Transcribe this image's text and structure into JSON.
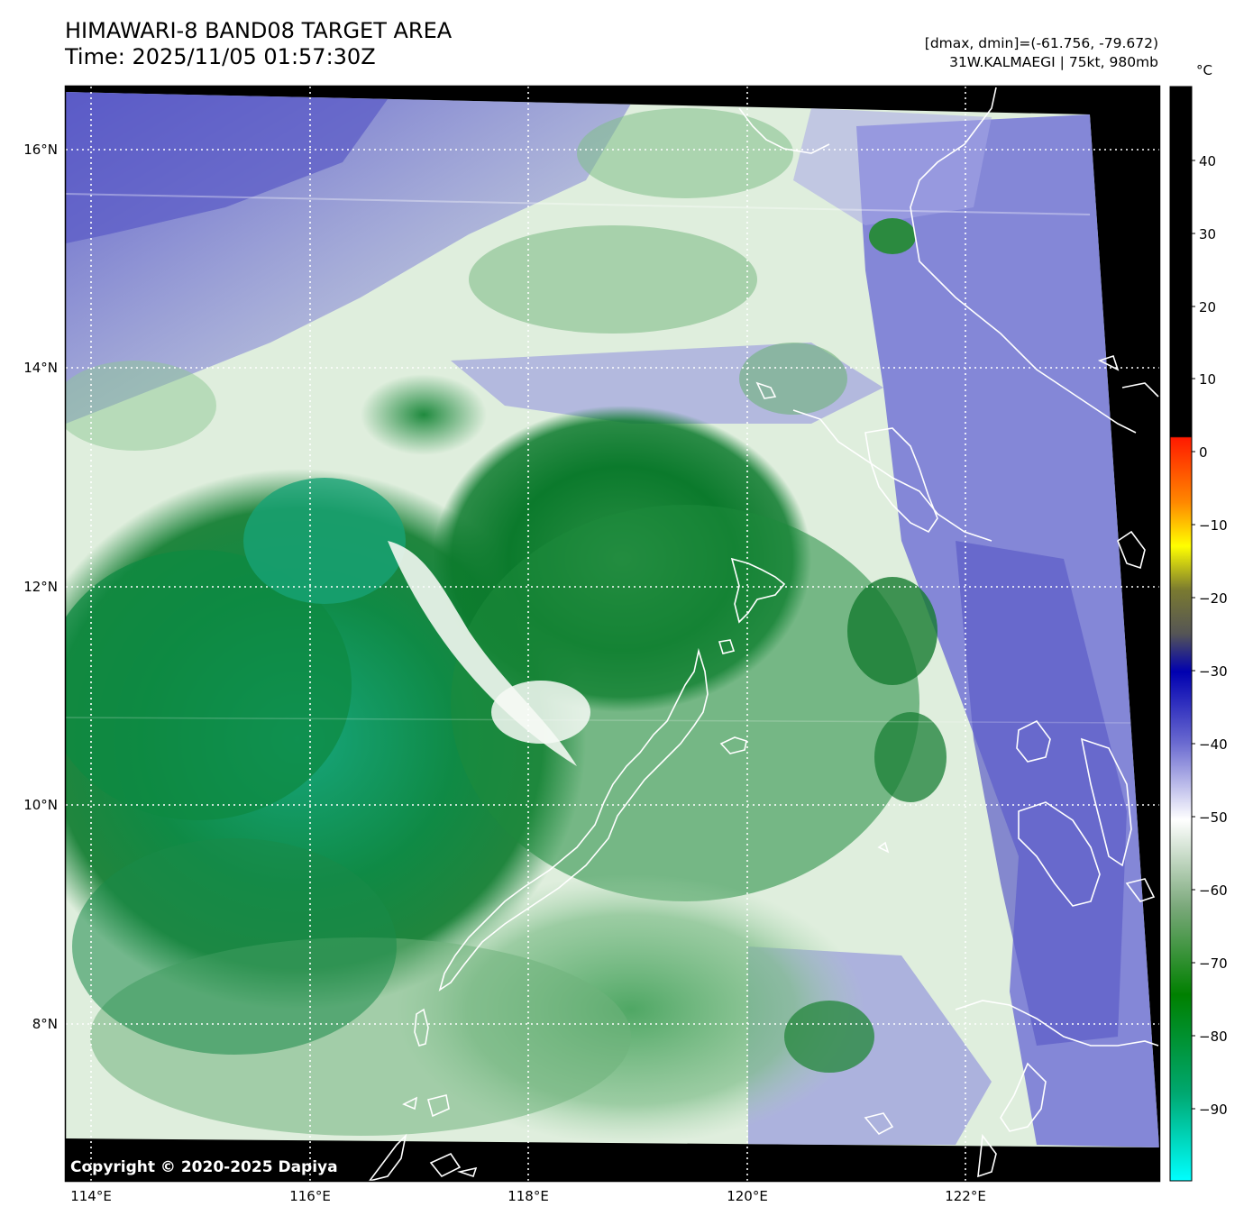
{
  "header": {
    "title": "HIMAWARI-8 BAND08 TARGET AREA",
    "time": "Time: 2025/11/05 01:57:30Z",
    "dminmax": "[dmax, dmin]=(-61.756, -79.672)",
    "storm": "31W.KALMAEGI | 75kt, 980mb"
  },
  "axes": {
    "lat_labels": [
      "16°N",
      "14°N",
      "12°N",
      "10°N",
      "8°N"
    ],
    "lon_labels": [
      "114°E",
      "116°E",
      "118°E",
      "120°E",
      "122°E"
    ]
  },
  "colorbar": {
    "unit": "°C",
    "ticks": [
      "40",
      "30",
      "20",
      "10",
      "0",
      "−10",
      "−20",
      "−30",
      "−40",
      "−50",
      "−60",
      "−70",
      "−80",
      "−90"
    ]
  },
  "copyright": "Copyright © 2020-2025 Dapiya",
  "colors": {
    "cold_cloud": "#0b7a2c",
    "very_cold": "#16b088",
    "mid_cloud": "#e8f3e6",
    "warm_cloud": "#7272d4",
    "space_fill": "#000000"
  }
}
